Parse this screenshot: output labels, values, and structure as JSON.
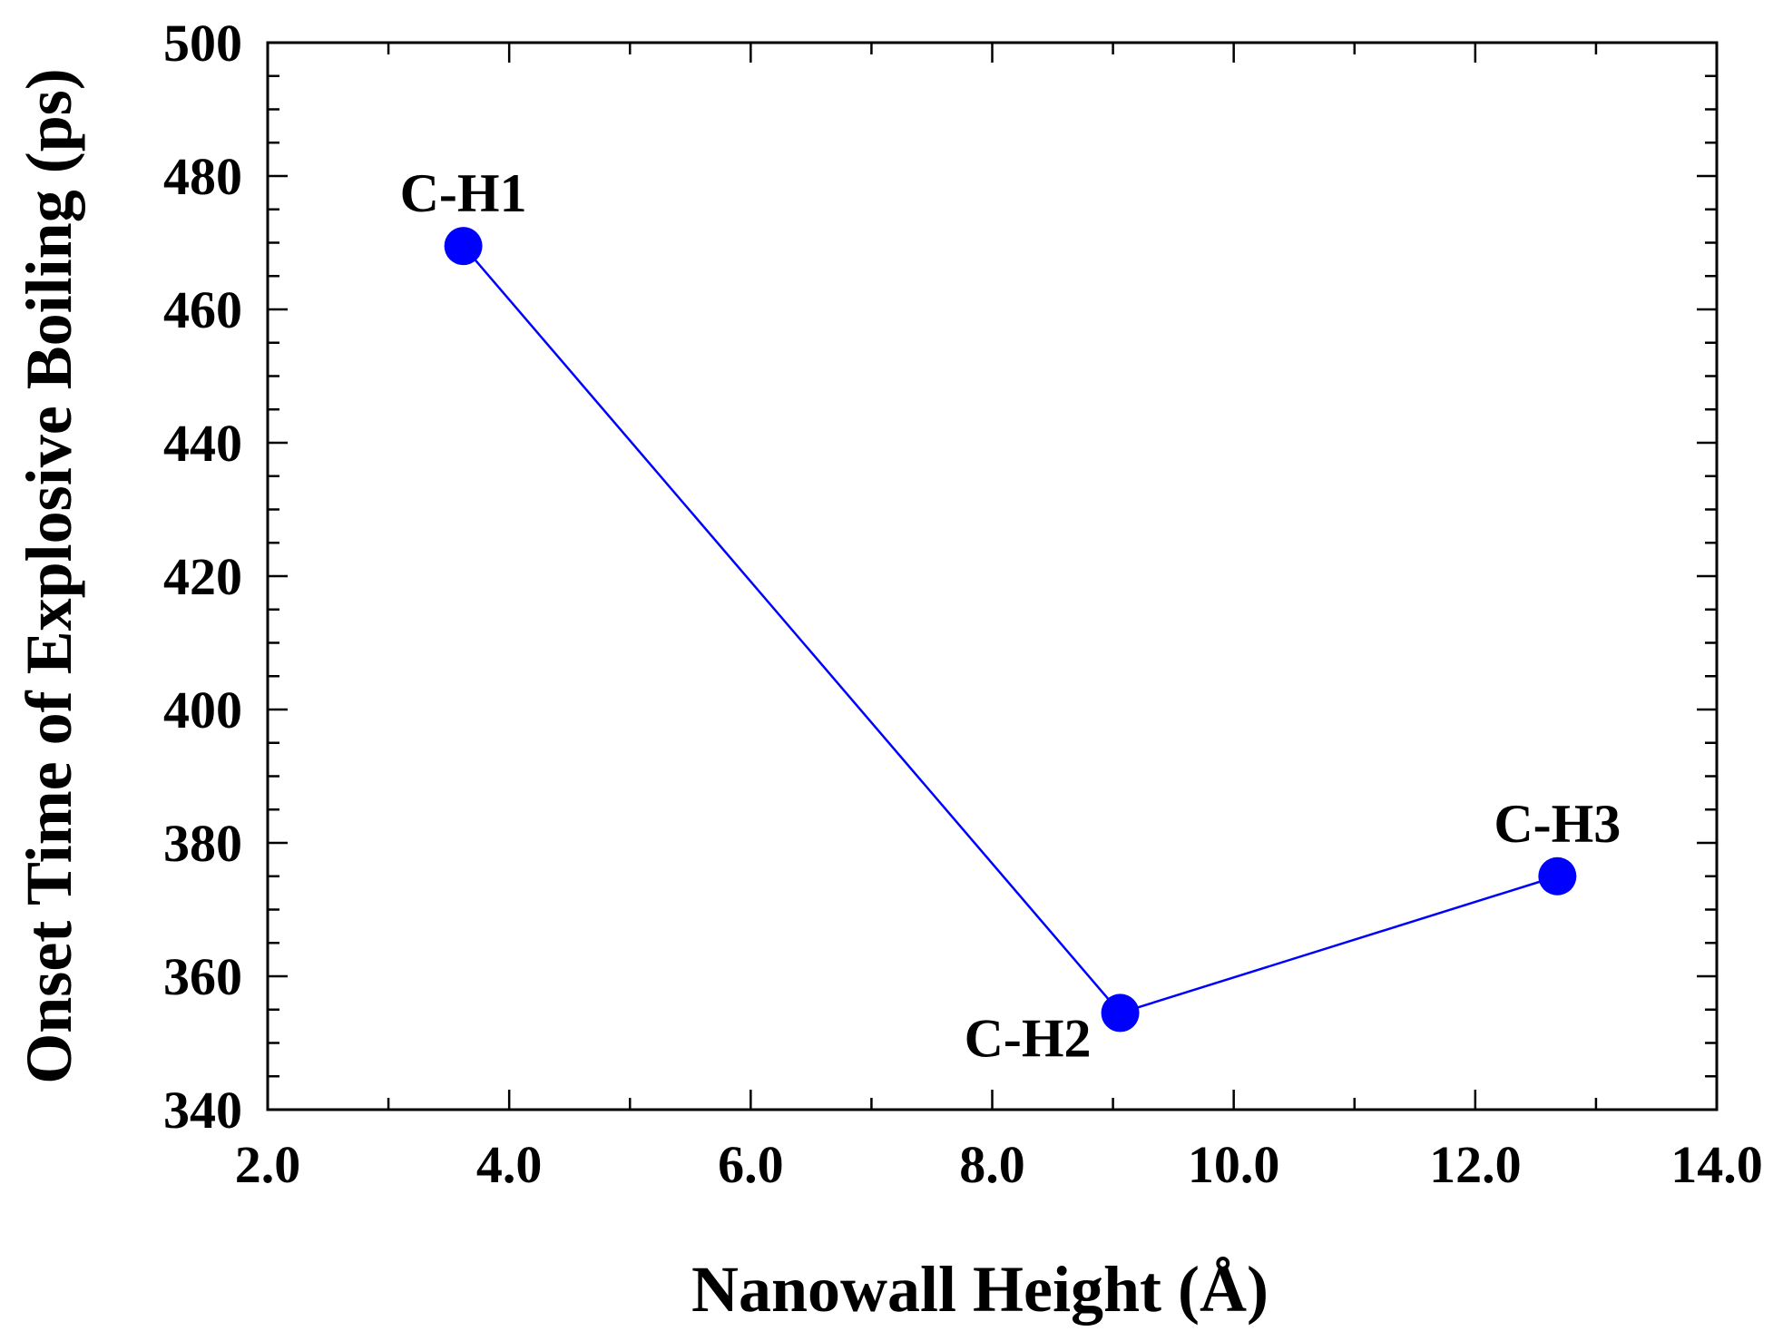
{
  "chart_data": {
    "type": "line",
    "title": "",
    "xlabel": "Nanowall Height (Å)",
    "ylabel": "Onset Time of Explosive Boiling (ps)",
    "xlim": [
      2.0,
      14.0
    ],
    "ylim": [
      340,
      500
    ],
    "x_ticks": [
      "2.0",
      "4.0",
      "6.0",
      "8.0",
      "10.0",
      "12.0",
      "14.0"
    ],
    "y_ticks": [
      "340",
      "360",
      "380",
      "400",
      "420",
      "440",
      "460",
      "480",
      "500"
    ],
    "grid": false,
    "series": [
      {
        "name": "Onset time",
        "color": "#0000ff",
        "points": [
          {
            "x": 3.62,
            "y": 469.5,
            "label": "C-H1"
          },
          {
            "x": 9.06,
            "y": 354.5,
            "label": "C-H2"
          },
          {
            "x": 12.68,
            "y": 375.0,
            "label": "C-H3"
          }
        ]
      }
    ]
  }
}
